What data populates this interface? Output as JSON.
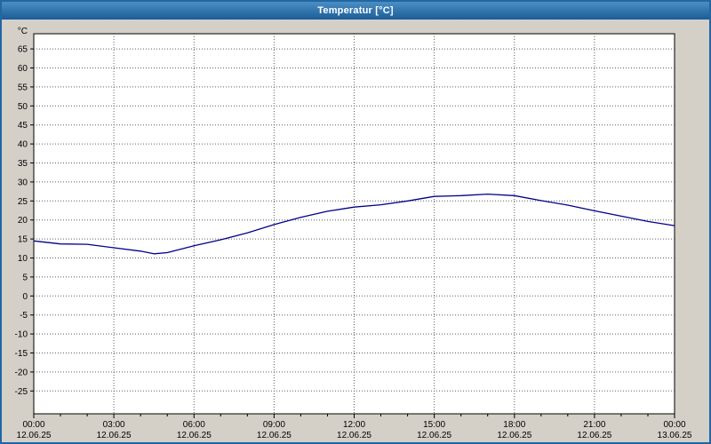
{
  "window": {
    "title": "Temperatur [°C]"
  },
  "colors": {
    "titlebar_from": "#4a8fc4",
    "titlebar_to": "#1b5c98",
    "window_border": "#2266a2",
    "background": "#d4d0c8",
    "grid": "#606060",
    "axis": "#000000",
    "curve": "#00008b",
    "plot_bg": "#ffffff"
  },
  "chart_data": {
    "type": "line",
    "title": "Temperatur [°C]",
    "xlabel": "",
    "ylabel": "°C",
    "ylim": [
      -31,
      69
    ],
    "xlim_hours": [
      0,
      24
    ],
    "grid": "dashed",
    "legend": "none",
    "plot_bg": "#ffffff",
    "y_ticks": [
      65,
      60,
      55,
      50,
      45,
      40,
      35,
      30,
      25,
      20,
      15,
      10,
      5,
      0,
      -5,
      -10,
      -15,
      -20,
      -25
    ],
    "x_major_ticks": [
      {
        "hour": 0,
        "time": "00:00",
        "date": "12.06.25"
      },
      {
        "hour": 3,
        "time": "03:00",
        "date": "12.06.25"
      },
      {
        "hour": 6,
        "time": "06:00",
        "date": "12.06.25"
      },
      {
        "hour": 9,
        "time": "09:00",
        "date": "12.06.25"
      },
      {
        "hour": 12,
        "time": "12:00",
        "date": "12.06.25"
      },
      {
        "hour": 15,
        "time": "15:00",
        "date": "12.06.25"
      },
      {
        "hour": 18,
        "time": "18:00",
        "date": "12.06.25"
      },
      {
        "hour": 21,
        "time": "21:00",
        "date": "12.06.25"
      },
      {
        "hour": 24,
        "time": "00:00",
        "date": "13.06.25"
      }
    ],
    "series": [
      {
        "name": "Temperatur",
        "color": "#00008b",
        "x": [
          0,
          1,
          2,
          3,
          4,
          4.5,
          5,
          6,
          7,
          8,
          9,
          10,
          11,
          12,
          13,
          14,
          15,
          16,
          17,
          18,
          19,
          20,
          21,
          22,
          23,
          24
        ],
        "values": [
          14.5,
          13.7,
          13.6,
          12.7,
          11.8,
          11.1,
          11.4,
          13.2,
          14.8,
          16.6,
          18.8,
          20.7,
          22.3,
          23.4,
          24.0,
          25.0,
          26.2,
          26.4,
          26.8,
          26.4,
          25.1,
          23.9,
          22.4,
          21.0,
          19.6,
          18.5
        ]
      }
    ]
  }
}
